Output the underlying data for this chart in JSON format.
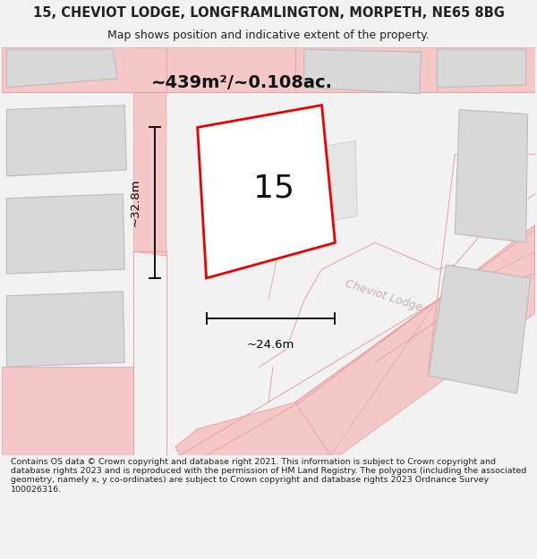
{
  "title_line1": "15, CHEVIOT LODGE, LONGFRAMLINGTON, MORPETH, NE65 8BG",
  "title_line2": "Map shows position and indicative extent of the property.",
  "area_label": "~439m²/~0.108ac.",
  "width_label": "~24.6m",
  "height_label": "~32.8m",
  "plot_number": "15",
  "footer_text": "Contains OS data © Crown copyright and database right 2021. This information is subject to Crown copyright and database rights 2023 and is reproduced with the permission of HM Land Registry. The polygons (including the associated geometry, namely x, y co-ordinates) are subject to Crown copyright and database rights 2023 Ordnance Survey 100026316.",
  "bg_color": "#f2f2f2",
  "map_bg": "#ffffff",
  "plot_fill": "#ffffff",
  "plot_edge": "#ee0000",
  "gray_fill": "#d8d8d8",
  "gray_edge": "#bbbbbb",
  "road_fill": "#f5c8c8",
  "road_edge": "#e8a0a0",
  "dim_color": "#000000",
  "text_color": "#222222",
  "street_label": "Cheviot Lodge",
  "street_label_color": "#c8b0b0",
  "title_fontsize": 10.5,
  "subtitle_fontsize": 9,
  "footer_fontsize": 6.8
}
